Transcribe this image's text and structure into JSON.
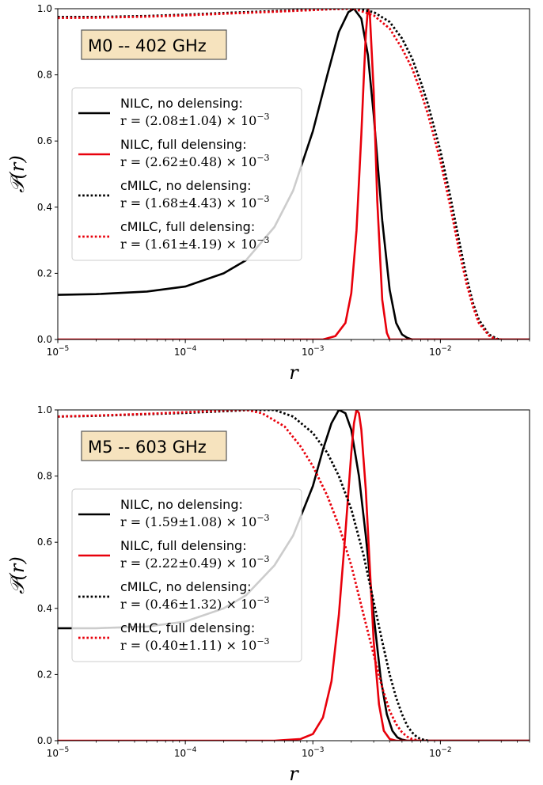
{
  "chart_data": [
    {
      "type": "line",
      "title": "M0 -- 402 GHz",
      "xlabel": "r",
      "ylabel": "𝒫(r)",
      "xscale": "log",
      "xlim": [
        1e-05,
        0.05
      ],
      "ylim": [
        0.0,
        1.0
      ],
      "grid": false,
      "legend_position": "center-left",
      "x_ticks": [
        {
          "value": 1e-05,
          "base": "10",
          "exp": "−5"
        },
        {
          "value": 0.0001,
          "base": "10",
          "exp": "−4"
        },
        {
          "value": 0.001,
          "base": "10",
          "exp": "−3"
        },
        {
          "value": 0.01,
          "base": "10",
          "exp": "−2"
        }
      ],
      "y_ticks": [
        {
          "value": 0.0,
          "label": "0.0"
        },
        {
          "value": 0.2,
          "label": "0.2"
        },
        {
          "value": 0.4,
          "label": "0.4"
        },
        {
          "value": 0.6,
          "label": "0.6"
        },
        {
          "value": 0.8,
          "label": "0.8"
        },
        {
          "value": 1.0,
          "label": "1.0"
        }
      ],
      "series": [
        {
          "name": "NILC, no delensing:",
          "estimate": "r = (2.08±1.04) × 10",
          "exp": "−3",
          "color": "#000000",
          "dash": "solid",
          "x": [
            1e-05,
            2e-05,
            5e-05,
            0.0001,
            0.0002,
            0.0003,
            0.0005,
            0.0007,
            0.001,
            0.0013,
            0.0016,
            0.0019,
            0.0021,
            0.0024,
            0.0027,
            0.003,
            0.0035,
            0.004,
            0.0045,
            0.005,
            0.0055,
            0.006,
            0.007,
            0.05
          ],
          "y": [
            0.135,
            0.137,
            0.145,
            0.16,
            0.2,
            0.24,
            0.34,
            0.45,
            0.63,
            0.8,
            0.93,
            0.99,
            1.0,
            0.97,
            0.86,
            0.68,
            0.36,
            0.15,
            0.05,
            0.015,
            0.005,
            0.0,
            0.0,
            0.0
          ]
        },
        {
          "name": "NILC, full delensing:",
          "estimate": "r = (2.62±0.48) × 10",
          "exp": "−3",
          "color": "#e8000b",
          "dash": "solid",
          "x": [
            1e-05,
            0.0012,
            0.0015,
            0.0018,
            0.002,
            0.0022,
            0.0024,
            0.0025,
            0.0026,
            0.0027,
            0.0028,
            0.003,
            0.0032,
            0.0035,
            0.0038,
            0.004,
            0.05
          ],
          "y": [
            0.0,
            0.0,
            0.01,
            0.05,
            0.14,
            0.33,
            0.62,
            0.78,
            0.92,
            1.0,
            0.98,
            0.75,
            0.42,
            0.12,
            0.02,
            0.0,
            0.0
          ]
        },
        {
          "name": "cMILC, no delensing:",
          "estimate": "r = (1.68±4.43) × 10",
          "exp": "−3",
          "color": "#000000",
          "dash": "dotted",
          "x": [
            1e-05,
            2e-05,
            5e-05,
            0.0001,
            0.0002,
            0.0005,
            0.001,
            0.0015,
            0.0022,
            0.003,
            0.004,
            0.005,
            0.006,
            0.007,
            0.008,
            0.01,
            0.012,
            0.014,
            0.016,
            0.018,
            0.02,
            0.024,
            0.028,
            0.03
          ],
          "y": [
            0.975,
            0.975,
            0.978,
            0.982,
            0.987,
            0.993,
            0.997,
            0.999,
            1.0,
            0.99,
            0.96,
            0.91,
            0.85,
            0.78,
            0.71,
            0.57,
            0.43,
            0.3,
            0.19,
            0.11,
            0.06,
            0.015,
            0.002,
            0.0
          ]
        },
        {
          "name": "cMILC, full delensing:",
          "estimate": "r = (1.61±4.19) × 10",
          "exp": "−3",
          "color": "#e8000b",
          "dash": "dotted",
          "x": [
            1e-05,
            2e-05,
            5e-05,
            0.0001,
            0.0002,
            0.0005,
            0.001,
            0.0015,
            0.0021,
            0.003,
            0.004,
            0.005,
            0.006,
            0.007,
            0.008,
            0.01,
            0.012,
            0.014,
            0.016,
            0.018,
            0.02,
            0.024,
            0.027,
            0.03
          ],
          "y": [
            0.972,
            0.973,
            0.976,
            0.98,
            0.985,
            0.991,
            0.996,
            0.999,
            1.0,
            0.98,
            0.94,
            0.88,
            0.82,
            0.75,
            0.68,
            0.54,
            0.4,
            0.27,
            0.17,
            0.1,
            0.05,
            0.012,
            0.002,
            0.0
          ]
        }
      ]
    },
    {
      "type": "line",
      "title": "M5 -- 603 GHz",
      "xlabel": "r",
      "ylabel": "𝒫(r)",
      "xscale": "log",
      "xlim": [
        1e-05,
        0.05
      ],
      "ylim": [
        0.0,
        1.0
      ],
      "grid": false,
      "legend_position": "center-left",
      "x_ticks": [
        {
          "value": 1e-05,
          "base": "10",
          "exp": "−5"
        },
        {
          "value": 0.0001,
          "base": "10",
          "exp": "−4"
        },
        {
          "value": 0.001,
          "base": "10",
          "exp": "−3"
        },
        {
          "value": 0.01,
          "base": "10",
          "exp": "−2"
        }
      ],
      "y_ticks": [
        {
          "value": 0.0,
          "label": "0.0"
        },
        {
          "value": 0.2,
          "label": "0.2"
        },
        {
          "value": 0.4,
          "label": "0.4"
        },
        {
          "value": 0.6,
          "label": "0.6"
        },
        {
          "value": 0.8,
          "label": "0.8"
        },
        {
          "value": 1.0,
          "label": "1.0"
        }
      ],
      "series": [
        {
          "name": "NILC, no delensing:",
          "estimate": "r = (1.59±1.08) × 10",
          "exp": "−3",
          "color": "#000000",
          "dash": "solid",
          "x": [
            1e-05,
            2e-05,
            5e-05,
            0.0001,
            0.0002,
            0.0003,
            0.0005,
            0.0007,
            0.001,
            0.0012,
            0.0014,
            0.0016,
            0.0018,
            0.002,
            0.0023,
            0.0026,
            0.003,
            0.0034,
            0.0038,
            0.0042,
            0.0046,
            0.005,
            0.0055,
            0.05
          ],
          "y": [
            0.34,
            0.34,
            0.345,
            0.36,
            0.4,
            0.44,
            0.53,
            0.62,
            0.77,
            0.88,
            0.96,
            1.0,
            0.99,
            0.94,
            0.8,
            0.62,
            0.38,
            0.19,
            0.08,
            0.03,
            0.01,
            0.003,
            0.0,
            0.0
          ]
        },
        {
          "name": "NILC, full delensing:",
          "estimate": "r = (2.22±0.49) × 10",
          "exp": "−3",
          "color": "#e8000b",
          "dash": "solid",
          "x": [
            1e-05,
            0.0005,
            0.0008,
            0.001,
            0.0012,
            0.0014,
            0.0016,
            0.0018,
            0.002,
            0.0021,
            0.0022,
            0.0023,
            0.0024,
            0.0026,
            0.0028,
            0.003,
            0.0033,
            0.0036,
            0.004,
            0.0045,
            0.05
          ],
          "y": [
            0.0,
            0.0,
            0.005,
            0.02,
            0.07,
            0.18,
            0.38,
            0.63,
            0.87,
            0.96,
            1.0,
            0.99,
            0.94,
            0.76,
            0.52,
            0.3,
            0.11,
            0.03,
            0.005,
            0.0,
            0.0
          ]
        },
        {
          "name": "cMILC, no delensing:",
          "estimate": "r = (0.46±1.32) × 10",
          "exp": "−3",
          "color": "#000000",
          "dash": "dotted",
          "x": [
            1e-05,
            2e-05,
            5e-05,
            0.0001,
            0.0002,
            0.0003,
            0.0005,
            0.0007,
            0.001,
            0.0013,
            0.0016,
            0.002,
            0.0025,
            0.003,
            0.0035,
            0.004,
            0.0045,
            0.005,
            0.0055,
            0.006,
            0.0065,
            0.007,
            0.008
          ],
          "y": [
            0.98,
            0.982,
            0.987,
            0.991,
            0.996,
            0.999,
            1.0,
            0.98,
            0.93,
            0.87,
            0.8,
            0.7,
            0.56,
            0.42,
            0.3,
            0.2,
            0.13,
            0.08,
            0.045,
            0.025,
            0.012,
            0.005,
            0.0
          ]
        },
        {
          "name": "cMILC, full delensing:",
          "estimate": "r = (0.40±1.11) × 10",
          "exp": "−3",
          "color": "#e8000b",
          "dash": "dotted",
          "x": [
            1e-05,
            2e-05,
            5e-05,
            0.0001,
            0.0002,
            0.0003,
            0.0004,
            0.0006,
            0.0008,
            0.001,
            0.0013,
            0.0016,
            0.002,
            0.0025,
            0.003,
            0.0035,
            0.004,
            0.0045,
            0.005,
            0.0055,
            0.006,
            0.0065,
            0.007
          ],
          "y": [
            0.98,
            0.983,
            0.988,
            0.993,
            0.998,
            1.0,
            0.99,
            0.95,
            0.89,
            0.83,
            0.74,
            0.65,
            0.53,
            0.38,
            0.26,
            0.16,
            0.09,
            0.05,
            0.025,
            0.012,
            0.005,
            0.002,
            0.0
          ]
        }
      ]
    }
  ]
}
